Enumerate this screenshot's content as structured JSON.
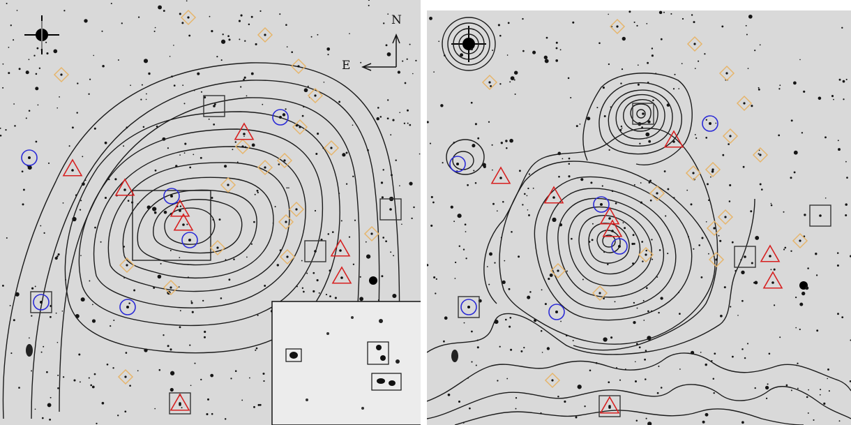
{
  "panels": [
    {
      "id": "left",
      "compass": {
        "north": "N",
        "east": "E"
      }
    },
    {
      "id": "right"
    }
  ],
  "colors": {
    "background": "#d9d9d9",
    "contour": "#1a1a1a",
    "diamond_marker": "#e6b56b",
    "circle_marker": "#2a2ad6",
    "triangle_marker": "#d62020",
    "square_marker": "#333333"
  },
  "marker_types": [
    "diamond",
    "circle",
    "triangle",
    "square"
  ]
}
